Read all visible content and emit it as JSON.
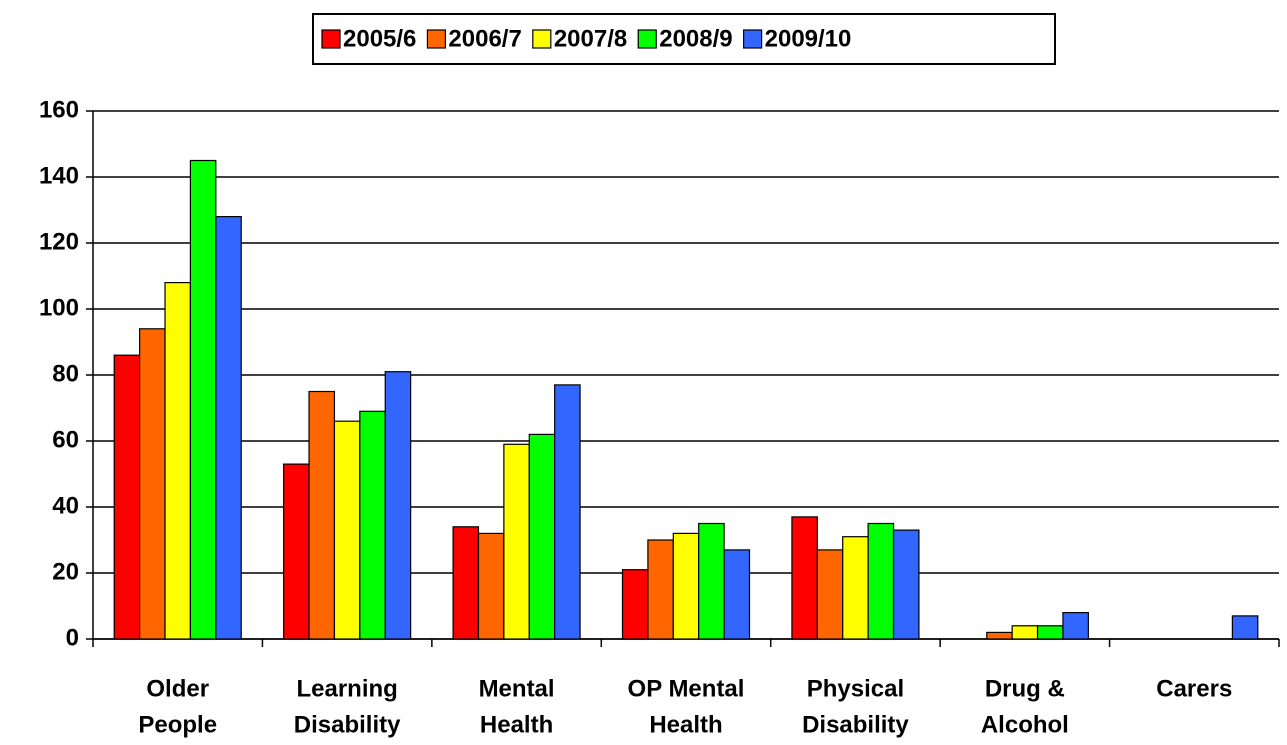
{
  "chart_data": {
    "type": "bar",
    "categories": [
      [
        "Older",
        "People"
      ],
      [
        "Learning",
        "Disability"
      ],
      [
        "Mental",
        "Health"
      ],
      [
        "OP Mental",
        "Health"
      ],
      [
        "Physical",
        "Disability"
      ],
      [
        "Drug &",
        "Alcohol"
      ],
      [
        "Carers"
      ]
    ],
    "series": [
      {
        "name": "2005/6",
        "color": "#ff0000",
        "values": [
          86,
          53,
          34,
          21,
          37,
          0,
          0
        ]
      },
      {
        "name": "2006/7",
        "color": "#ff6600",
        "values": [
          94,
          75,
          32,
          30,
          27,
          2,
          0
        ]
      },
      {
        "name": "2007/8",
        "color": "#ffff00",
        "values": [
          108,
          66,
          59,
          32,
          31,
          4,
          0
        ]
      },
      {
        "name": "2008/9",
        "color": "#00ff00",
        "values": [
          145,
          69,
          62,
          35,
          35,
          4,
          0
        ]
      },
      {
        "name": "2009/10",
        "color": "#3366ff",
        "values": [
          128,
          81,
          77,
          27,
          33,
          8,
          7
        ]
      }
    ],
    "ylim": [
      0,
      160
    ],
    "yticks": [
      0,
      20,
      40,
      60,
      80,
      100,
      120,
      140,
      160
    ],
    "grid": true,
    "legend": "top"
  }
}
